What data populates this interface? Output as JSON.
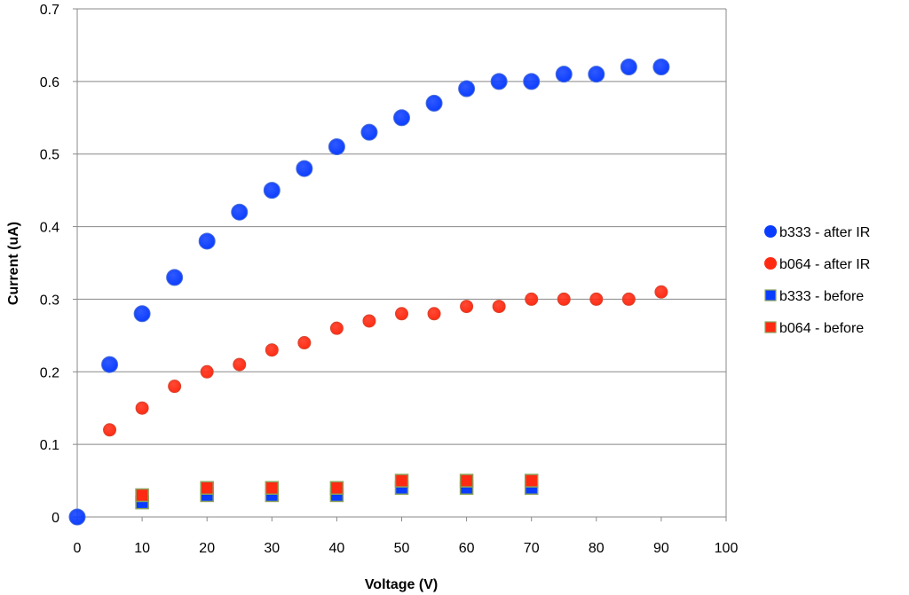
{
  "chart_data": {
    "type": "scatter",
    "title": "",
    "xlabel": "Voltage (V)",
    "ylabel": "Current (uA)",
    "xlim": [
      0,
      100
    ],
    "ylim": [
      0,
      0.7
    ],
    "x_ticks": [
      0,
      10,
      20,
      30,
      40,
      50,
      60,
      70,
      80,
      90,
      100
    ],
    "y_ticks": [
      0,
      0.1,
      0.2,
      0.3,
      0.4,
      0.5,
      0.6,
      0.7
    ],
    "grid": "horizontal",
    "legend_position": "right",
    "series": [
      {
        "name": "b333 - after IR",
        "marker": "circle",
        "color": "#0a3cff",
        "x": [
          0,
          5,
          10,
          15,
          20,
          25,
          30,
          35,
          40,
          45,
          50,
          55,
          60,
          65,
          70,
          75,
          80,
          85,
          90
        ],
        "y": [
          0,
          0.21,
          0.28,
          0.33,
          0.38,
          0.42,
          0.45,
          0.48,
          0.51,
          0.53,
          0.55,
          0.57,
          0.59,
          0.6,
          0.6,
          0.61,
          0.61,
          0.62,
          0.62
        ]
      },
      {
        "name": "b064 - after IR",
        "marker": "circle",
        "color": "#ff2a12",
        "x": [
          5,
          10,
          15,
          20,
          25,
          30,
          35,
          40,
          45,
          50,
          55,
          60,
          65,
          70,
          75,
          80,
          85,
          90
        ],
        "y": [
          0.12,
          0.15,
          0.18,
          0.2,
          0.21,
          0.23,
          0.24,
          0.26,
          0.27,
          0.28,
          0.28,
          0.29,
          0.29,
          0.3,
          0.3,
          0.3,
          0.3,
          0.31
        ]
      },
      {
        "name": "b333 - before",
        "marker": "square",
        "color": "#0a3cff",
        "x": [
          10,
          20,
          30,
          40,
          50,
          60,
          70
        ],
        "y": [
          0.02,
          0.03,
          0.03,
          0.03,
          0.04,
          0.04,
          0.04
        ]
      },
      {
        "name": "b064 - before",
        "marker": "square",
        "color": "#ff2a12",
        "x": [
          10,
          20,
          30,
          40,
          50,
          60,
          70
        ],
        "y": [
          0.03,
          0.04,
          0.04,
          0.04,
          0.05,
          0.05,
          0.05
        ]
      }
    ]
  }
}
